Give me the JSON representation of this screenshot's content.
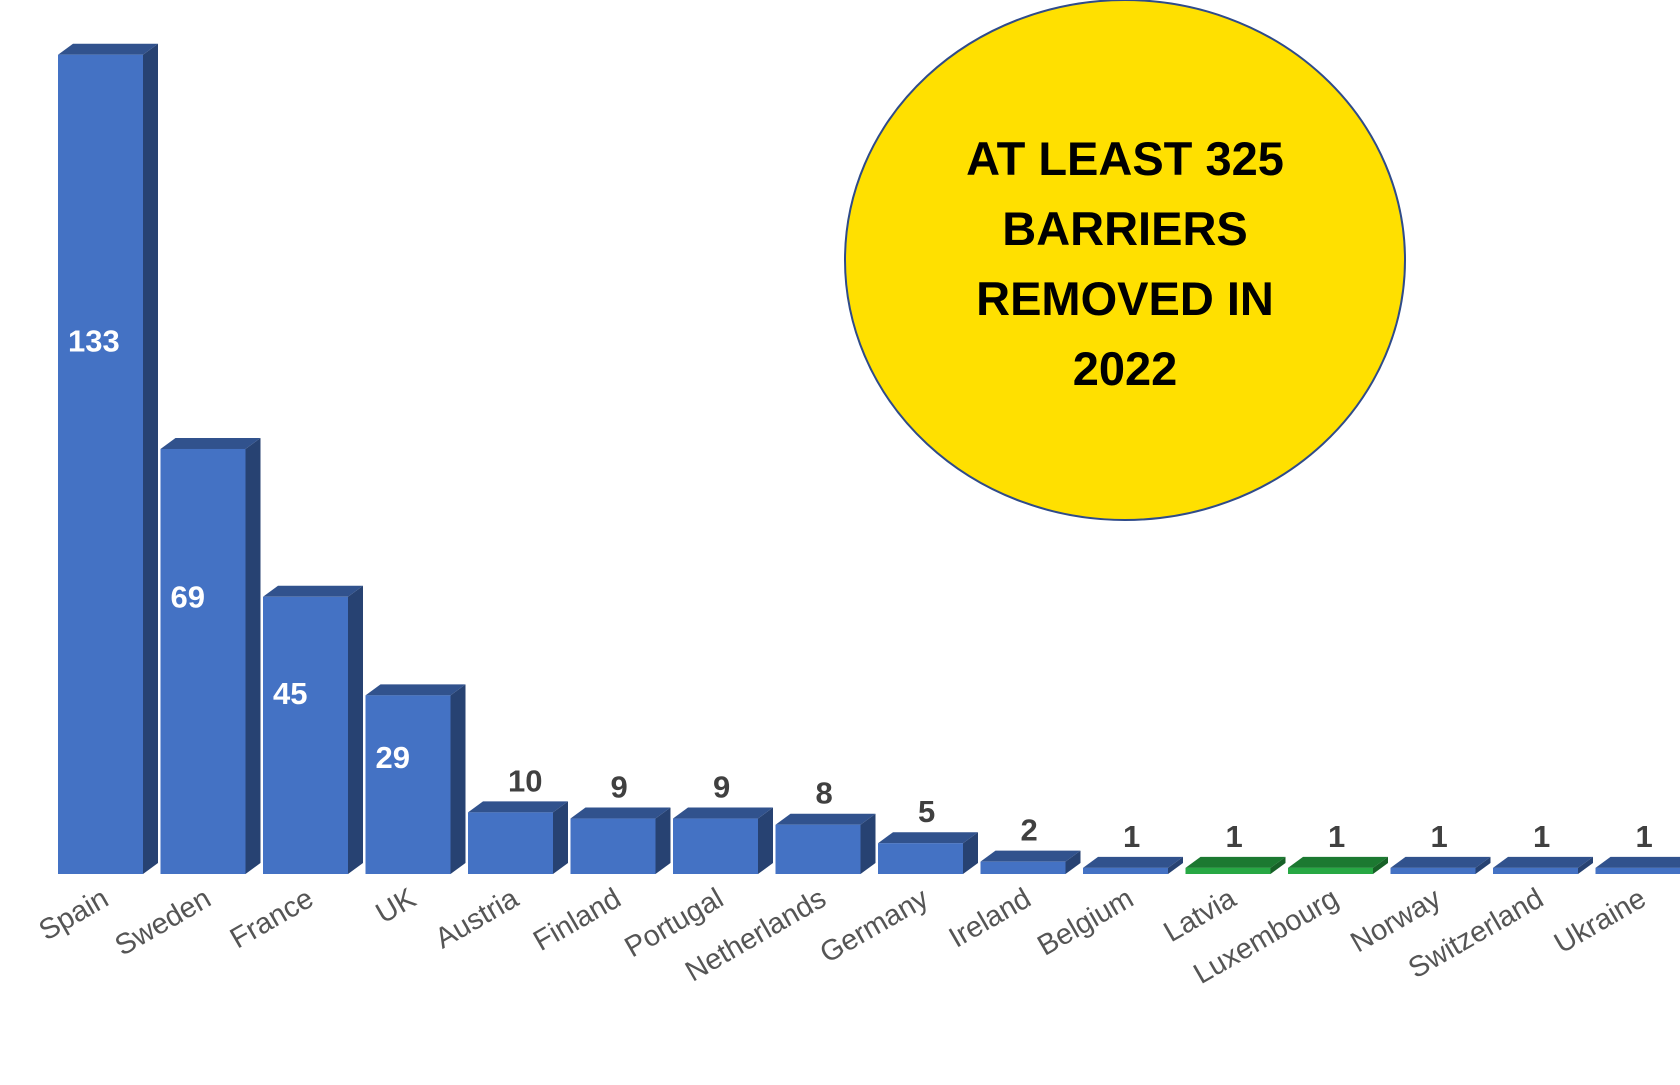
{
  "chart_data": {
    "type": "bar",
    "categories": [
      "Spain",
      "Sweden",
      "France",
      "UK",
      "Austria",
      "Finland",
      "Portugal",
      "Netherlands",
      "Germany",
      "Ireland",
      "Belgium",
      "Latvia",
      "Luxembourg",
      "Norway",
      "Switzerland",
      "Ukraine"
    ],
    "values": [
      133,
      69,
      45,
      29,
      10,
      9,
      9,
      8,
      5,
      2,
      1,
      1,
      1,
      1,
      1,
      1
    ],
    "title": "",
    "xlabel": "",
    "ylabel": "",
    "ylim": [
      0,
      140
    ],
    "grid": false,
    "legend": "none",
    "bar_color": "#4472C4",
    "highlight_color": "#27A844",
    "highlighted_categories": [
      "Latvia",
      "Luxembourg"
    ],
    "annotation": {
      "lines": [
        "AT LEAST 325",
        "BARRIERS",
        "REMOVED IN",
        "2022"
      ],
      "fill_color": "#FFE000",
      "border_color": "#2F4B8A"
    }
  }
}
